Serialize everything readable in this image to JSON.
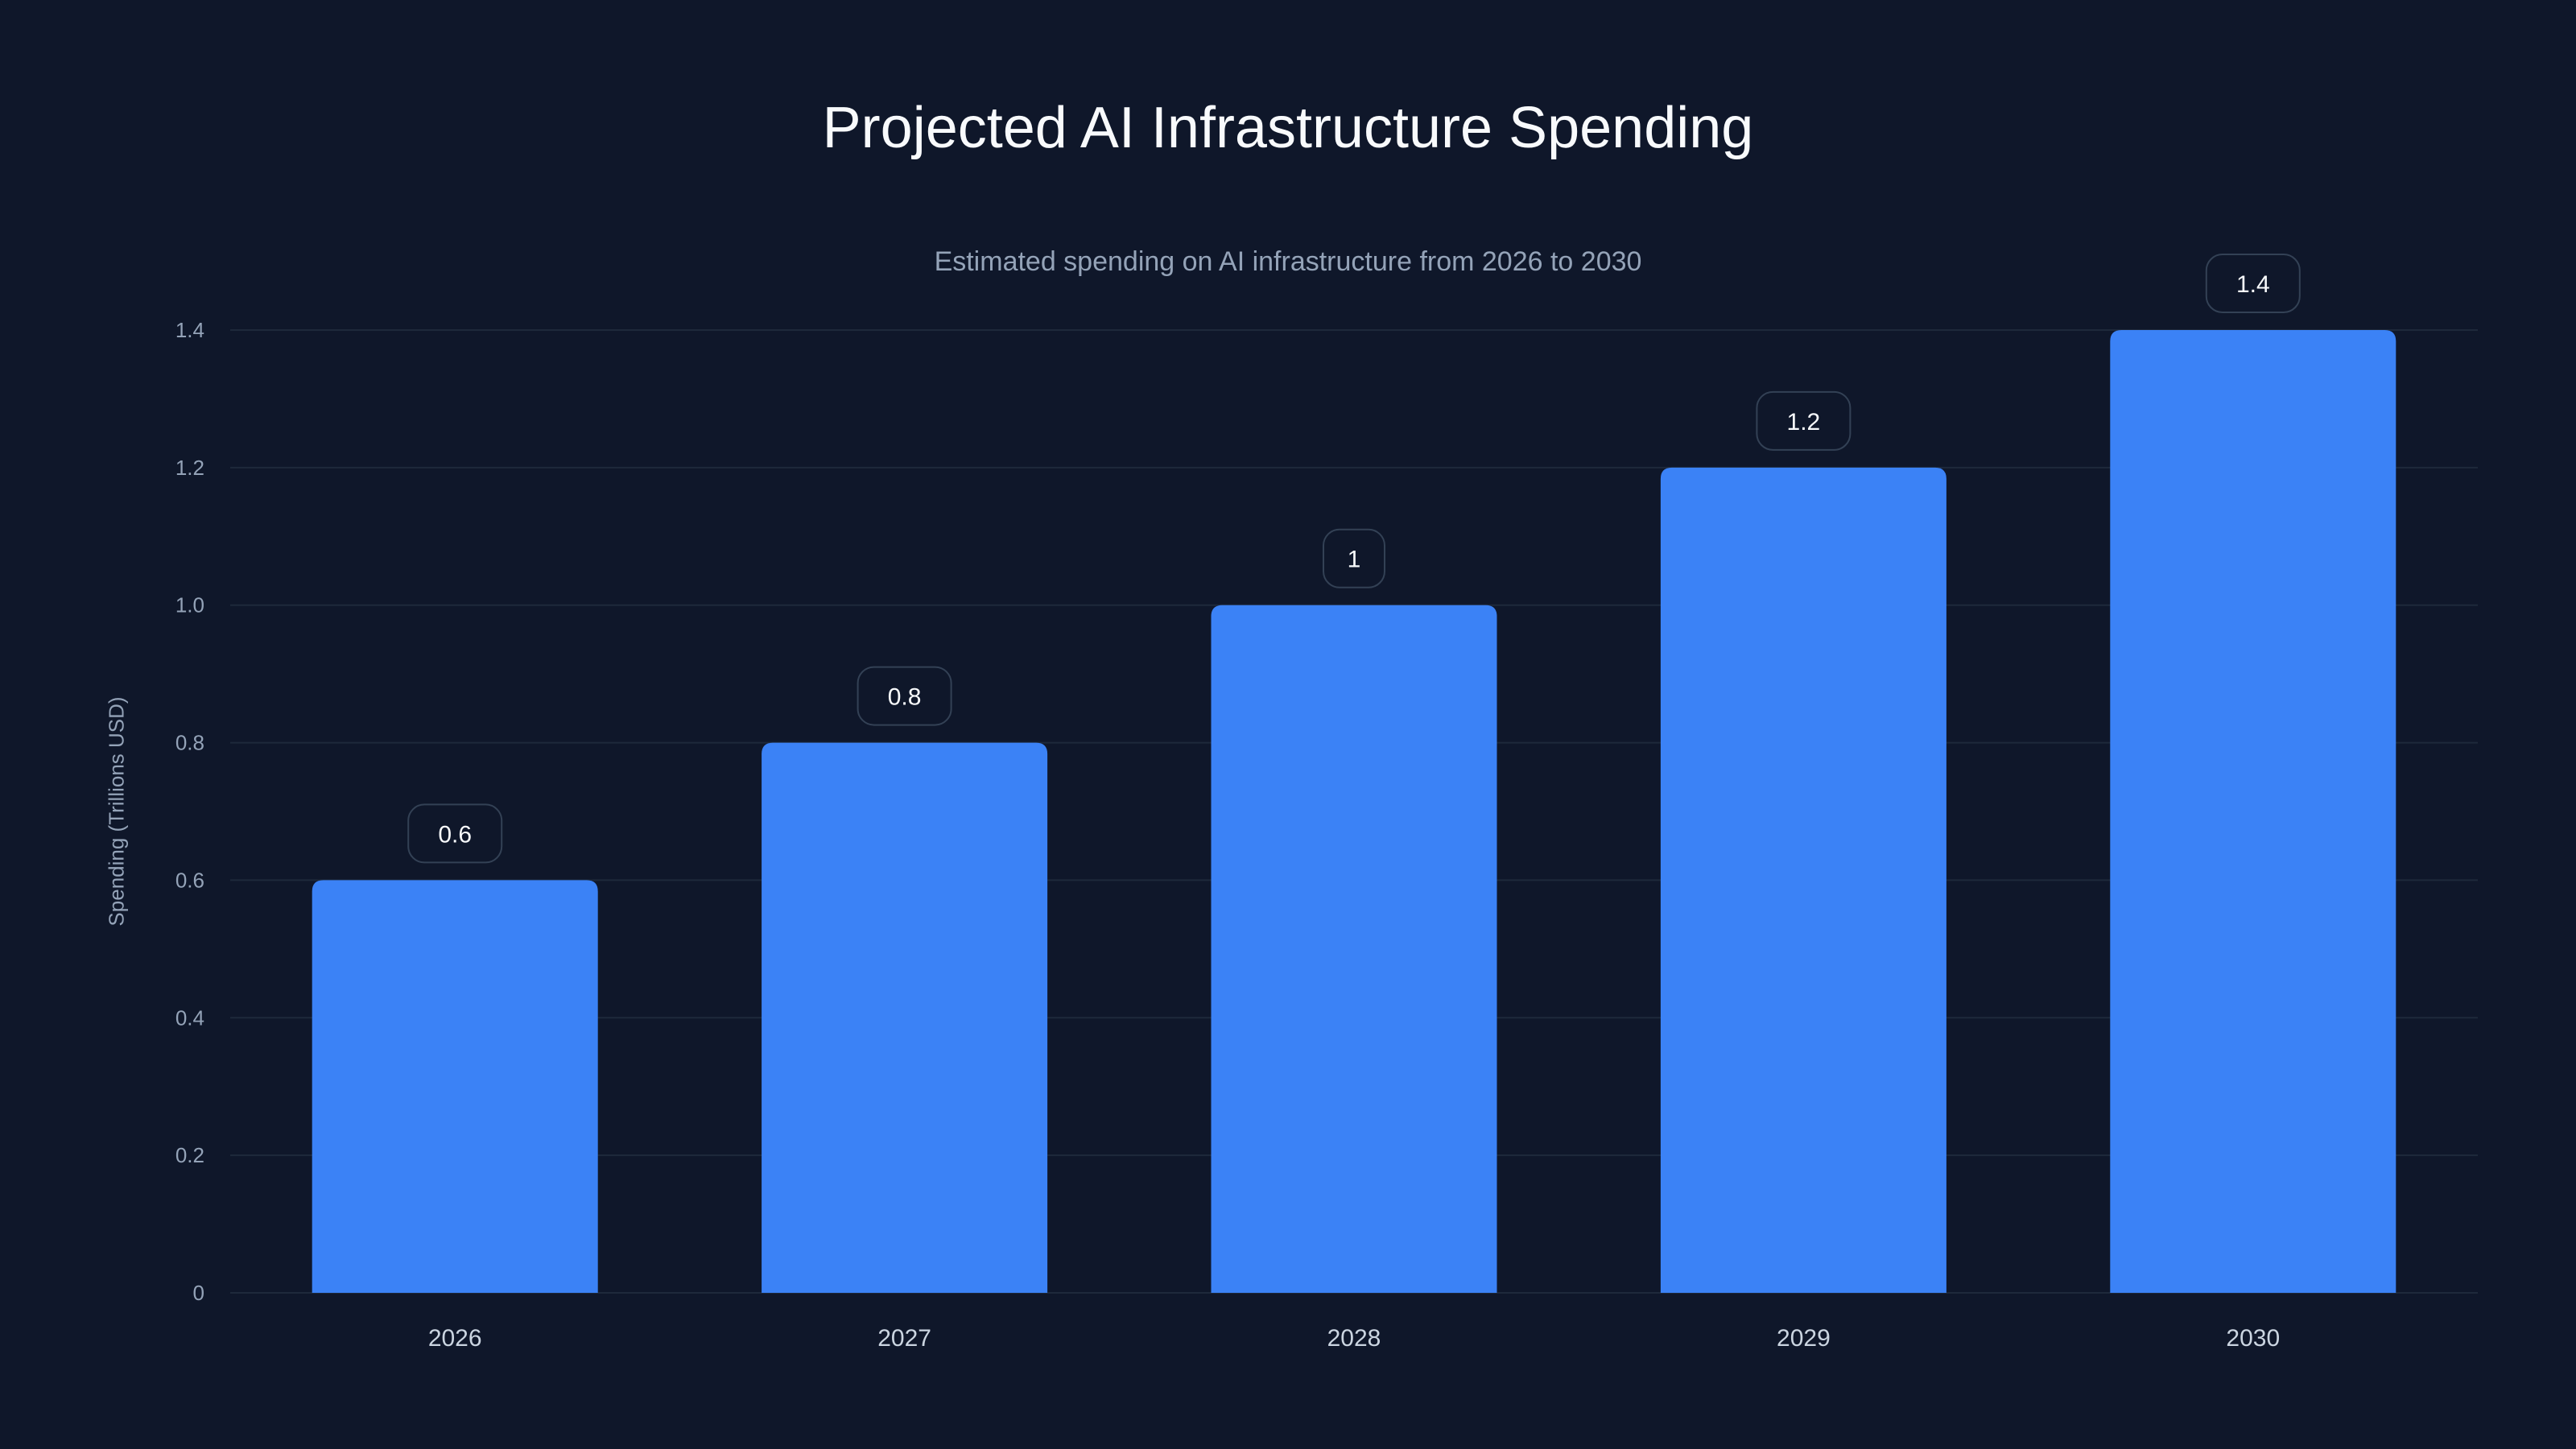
{
  "chart_data": {
    "type": "bar",
    "title": "Projected AI Infrastructure Spending",
    "subtitle": "Estimated spending on AI infrastructure from 2026 to 2030",
    "xlabel": "",
    "ylabel": "Spending (Trillions USD)",
    "categories": [
      "2026",
      "2027",
      "2028",
      "2029",
      "2030"
    ],
    "values": [
      0.6,
      0.8,
      1,
      1.2,
      1.4
    ],
    "data_labels": [
      "0.6",
      "0.8",
      "1",
      "1.2",
      "1.4"
    ],
    "ylim": [
      0,
      1.4
    ],
    "yticks": [
      0,
      0.2,
      0.4,
      0.6,
      0.8,
      1.0,
      1.2,
      1.4
    ],
    "ytick_labels": [
      "0",
      "0.2",
      "0.4",
      "0.6",
      "0.8",
      "1.0",
      "1.2",
      "1.4"
    ],
    "grid": true,
    "legend": "none",
    "colors": {
      "bar": "#3b82f6",
      "background": "#0f172a",
      "grid": "#1e293b",
      "tick_text": "#94a3b8",
      "label_border": "#334155"
    }
  }
}
